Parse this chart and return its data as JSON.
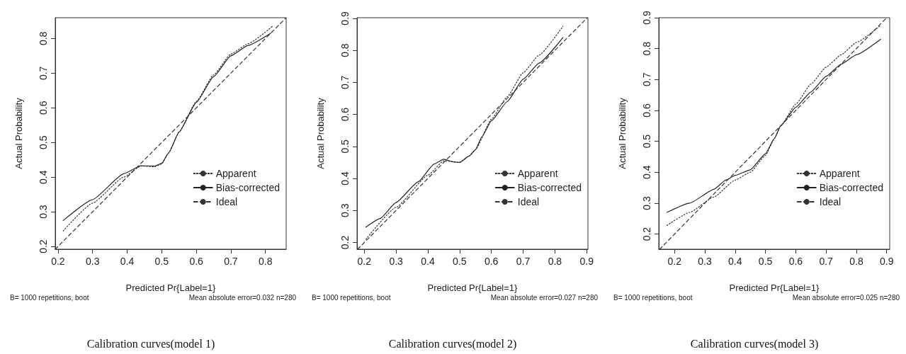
{
  "chart_data": [
    {
      "type": "line",
      "title": "Calibration curves(model 1)",
      "xlabel": "Predicted Pr{Label=1}",
      "ylabel": "Actual Probability",
      "annotations": [
        "B= 1000 repetitions, boot",
        "Mean absolute error=0.032 n=280"
      ],
      "xlim": [
        0.192,
        0.86
      ],
      "ylim": [
        0.192,
        0.86
      ],
      "xticks": [
        0.2,
        0.3,
        0.4,
        0.5,
        0.6,
        0.7,
        0.8
      ],
      "yticks": [
        0.2,
        0.3,
        0.4,
        0.5,
        0.6,
        0.7,
        0.8
      ],
      "grid": false,
      "legend": "bottom right",
      "marker": "none",
      "series": [
        {
          "name": "Apparent",
          "color": "#333333",
          "line_style": "dotted",
          "x": [
            0.215,
            0.3,
            0.39,
            0.44,
            0.48,
            0.5,
            0.52,
            0.55,
            0.6,
            0.65,
            0.7,
            0.75,
            0.82
          ],
          "values": [
            0.245,
            0.325,
            0.4,
            0.432,
            0.43,
            0.438,
            0.47,
            0.53,
            0.618,
            0.695,
            0.755,
            0.785,
            0.835
          ]
        },
        {
          "name": "Bias-corrected",
          "color": "#222222",
          "line_style": "solid",
          "x": [
            0.215,
            0.3,
            0.39,
            0.44,
            0.48,
            0.5,
            0.52,
            0.55,
            0.6,
            0.65,
            0.7,
            0.75,
            0.815
          ],
          "values": [
            0.275,
            0.335,
            0.41,
            0.433,
            0.432,
            0.44,
            0.47,
            0.53,
            0.615,
            0.69,
            0.75,
            0.78,
            0.815
          ]
        },
        {
          "name": "Ideal",
          "color": "#333333",
          "line_style": "dashed",
          "x": [
            0.192,
            0.86
          ],
          "values": [
            0.192,
            0.86
          ]
        }
      ]
    },
    {
      "type": "line",
      "title": "Calibration curves(model 2)",
      "xlabel": "Predicted Pr{Label=1}",
      "ylabel": "Actual Probability",
      "annotations": [
        "B= 1000 repetitions, boot",
        "Mean absolute error=0.027 n=280"
      ],
      "xlim": [
        0.177,
        0.904
      ],
      "ylim": [
        0.179,
        0.902
      ],
      "xticks": [
        0.2,
        0.3,
        0.4,
        0.5,
        0.6,
        0.7,
        0.8,
        0.9
      ],
      "yticks": [
        0.2,
        0.3,
        0.4,
        0.5,
        0.6,
        0.7,
        0.8,
        0.9
      ],
      "grid": false,
      "legend": "bottom right",
      "marker": "none",
      "series": [
        {
          "name": "Apparent",
          "color": "#333333",
          "line_style": "dotted",
          "x": [
            0.205,
            0.3,
            0.4,
            0.45,
            0.5,
            0.53,
            0.55,
            0.6,
            0.65,
            0.7,
            0.75,
            0.825
          ],
          "values": [
            0.21,
            0.31,
            0.41,
            0.455,
            0.45,
            0.47,
            0.49,
            0.585,
            0.655,
            0.73,
            0.785,
            0.875
          ]
        },
        {
          "name": "Bias-corrected",
          "color": "#222222",
          "line_style": "solid",
          "x": [
            0.205,
            0.25,
            0.3,
            0.37,
            0.42,
            0.45,
            0.48,
            0.5,
            0.53,
            0.55,
            0.57,
            0.6,
            0.65,
            0.7,
            0.75,
            0.825
          ],
          "values": [
            0.248,
            0.275,
            0.325,
            0.39,
            0.445,
            0.46,
            0.452,
            0.45,
            0.47,
            0.49,
            0.53,
            0.58,
            0.64,
            0.71,
            0.76,
            0.84
          ]
        },
        {
          "name": "Ideal",
          "color": "#333333",
          "line_style": "dashed",
          "x": [
            0.179,
            0.902
          ],
          "values": [
            0.179,
            0.902
          ]
        }
      ]
    },
    {
      "type": "line",
      "title": "Calibration curves(model 3)",
      "xlabel": "Predicted Pr{Label=1}",
      "ylabel": "Actual Probability",
      "annotations": [
        "B= 1000 repetitions, boot",
        "Mean absolute error=0.025 n=280"
      ],
      "xlim": [
        0.148,
        0.91
      ],
      "ylim": [
        0.151,
        0.9
      ],
      "xticks": [
        0.2,
        0.3,
        0.4,
        0.5,
        0.6,
        0.7,
        0.8,
        0.9
      ],
      "yticks": [
        0.2,
        0.3,
        0.4,
        0.5,
        0.6,
        0.7,
        0.8,
        0.9
      ],
      "grid": false,
      "legend": "bottom right",
      "marker": "none",
      "series": [
        {
          "name": "Apparent",
          "color": "#333333",
          "line_style": "dotted",
          "x": [
            0.175,
            0.25,
            0.33,
            0.4,
            0.45,
            0.5,
            0.53,
            0.55,
            0.6,
            0.65,
            0.7,
            0.75,
            0.8,
            0.88
          ],
          "values": [
            0.228,
            0.27,
            0.32,
            0.375,
            0.4,
            0.455,
            0.51,
            0.55,
            0.62,
            0.685,
            0.74,
            0.78,
            0.82,
            0.875
          ]
        },
        {
          "name": "Bias-corrected",
          "color": "#222222",
          "line_style": "solid",
          "x": [
            0.175,
            0.25,
            0.33,
            0.37,
            0.4,
            0.45,
            0.5,
            0.53,
            0.55,
            0.6,
            0.65,
            0.7,
            0.75,
            0.8,
            0.88
          ],
          "values": [
            0.27,
            0.3,
            0.345,
            0.375,
            0.39,
            0.408,
            0.46,
            0.51,
            0.55,
            0.61,
            0.66,
            0.71,
            0.75,
            0.78,
            0.83
          ]
        },
        {
          "name": "Ideal",
          "color": "#333333",
          "line_style": "dashed",
          "x": [
            0.151,
            0.9
          ],
          "values": [
            0.151,
            0.9
          ]
        }
      ]
    }
  ]
}
